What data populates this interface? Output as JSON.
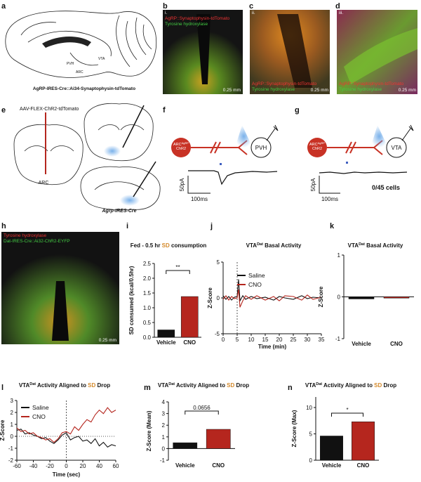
{
  "panels": {
    "letters": [
      "a",
      "b",
      "c",
      "d",
      "e",
      "f",
      "g",
      "h",
      "i",
      "j",
      "k",
      "l",
      "m",
      "n"
    ],
    "a": {
      "caption": "AgRP-IRES-Cre::Ai34-Synaptophysin-tdTomato",
      "labels": [
        "PVH",
        "VTA",
        "ARC"
      ]
    },
    "b": {
      "roman": "i.",
      "red_label": "AgRP::Synaptophysin-tdTomato",
      "green_label": "Tyrosine hydroxylase",
      "scale": "0.25 mm"
    },
    "c": {
      "roman": "ii.",
      "red_label": "AgRP::Synaptophysin-tdTomato",
      "green_label": "Tyrosine hydroxylase",
      "scale": "0.25 mm"
    },
    "d": {
      "roman": "iii.",
      "red_label": "AgRP::Synaptophysin-tdTomato",
      "green_label": "Tyrosine hydroxylase",
      "scale": "0.25 mm"
    },
    "e": {
      "virus": "AAV-FLEX-ChR2-tdTomato",
      "arc": "ARC",
      "mouse": "Agrp-IRES-Cre"
    },
    "f": {
      "cell": "ARC",
      "cell_sup": "AgRP",
      "cell_sub": "ChR2",
      "target": "PVH",
      "ybar": "50pA",
      "xbar": "100ms"
    },
    "g": {
      "cell": "ARC",
      "cell_sup": "AgRP",
      "cell_sub": "ChR2",
      "target": "VTA",
      "ybar": "50pA",
      "xbar": "100ms",
      "count": "0/45 cells"
    },
    "h": {
      "red_label": "Tyrosine hydroxylase",
      "green_label": "Dat-IRES-Cre::Ai32-ChR2-EYFP",
      "scale": "0.25 mm"
    }
  },
  "chart_data": [
    {
      "type": "bar",
      "title": [
        {
          "text": "Fed - 0.5 hr "
        },
        {
          "text": "SD",
          "color": "#d4892a"
        },
        {
          "text": " consumption"
        }
      ],
      "ylabel": "SD consumed (kcal/0.5hr)",
      "categories": [
        "Vehicle",
        "CNO"
      ],
      "values": [
        0.25,
        1.38
      ],
      "colors": [
        "#111111",
        "#b5261e"
      ],
      "ylim": [
        0,
        2.5
      ],
      "yticks": [
        {
          "value": 0,
          "label": "0.0"
        },
        {
          "value": 0.5,
          "label": "0.5"
        },
        {
          "value": 1,
          "label": "1.0"
        },
        {
          "value": 1.5,
          "label": "1.5"
        },
        {
          "value": 2,
          "label": "2.0"
        },
        {
          "value": 2.5,
          "label": "2.5"
        }
      ],
      "annotation": "**"
    },
    {
      "type": "line",
      "title": [
        {
          "text": "VTA"
        },
        {
          "text": "Dat",
          "sup": true
        },
        {
          "text": " Basal Activity"
        }
      ],
      "ylabel": "Z-Score",
      "xlabel": "Time (min)",
      "x": [
        0,
        1,
        2,
        3,
        4,
        5,
        5.5,
        6,
        7,
        8,
        10,
        12,
        15,
        18,
        20,
        22,
        25,
        28,
        30,
        32,
        35
      ],
      "series": [
        {
          "name": "Saline",
          "color": "#111111",
          "values": [
            0.3,
            -0.2,
            0.2,
            -0.3,
            0.1,
            0.2,
            2.6,
            -0.4,
            0.3,
            -0.2,
            0.2,
            -0.1,
            0.1,
            -0.3,
            0.2,
            0,
            -0.2,
            0.3,
            -0.1,
            0.1,
            0
          ]
        },
        {
          "name": "CNO",
          "color": "#b5261e",
          "values": [
            -0.2,
            0.3,
            -0.3,
            0.2,
            -0.1,
            0,
            1.2,
            -1.3,
            -0.4,
            0.3,
            -0.2,
            0.3,
            -0.3,
            0.2,
            -0.4,
            0.3,
            0.2,
            -0.3,
            0.4,
            -0.2,
            0.1
          ]
        }
      ],
      "xlim": [
        0,
        35
      ],
      "xticks": [
        0,
        5,
        10,
        15,
        20,
        25,
        30,
        35
      ],
      "ylim": [
        -5,
        5
      ],
      "yticks": [
        -5,
        0,
        5
      ],
      "vlines": [
        5
      ]
    },
    {
      "type": "bar",
      "title": [
        {
          "text": "VTA"
        },
        {
          "text": "Dat",
          "sup": true
        },
        {
          "text": " Basal Activity"
        }
      ],
      "ylabel": "Z-Score",
      "categories": [
        "Vehicle",
        "CNO"
      ],
      "values": [
        -0.05,
        -0.03
      ],
      "colors": [
        "#111111",
        "#b5261e"
      ],
      "ylim": [
        -1,
        1
      ],
      "yticks": [
        -1,
        0,
        1
      ]
    },
    {
      "type": "line",
      "title": [
        {
          "text": "VTA"
        },
        {
          "text": "Dat",
          "sup": true
        },
        {
          "text": " Activity Aligned to "
        },
        {
          "text": "SD",
          "color": "#d4892a"
        },
        {
          "text": " Drop"
        }
      ],
      "ylabel": "Z-Score",
      "xlabel": "Time (sec)",
      "x": [
        -60,
        -55,
        -50,
        -45,
        -40,
        -35,
        -30,
        -25,
        -20,
        -15,
        -10,
        -5,
        0,
        5,
        10,
        15,
        20,
        25,
        30,
        35,
        40,
        45,
        50,
        55,
        60
      ],
      "series": [
        {
          "name": "Saline",
          "color": "#111111",
          "values": [
            0.5,
            0.6,
            0.2,
            0.3,
            0.1,
            0,
            -0.2,
            -0.1,
            -0.4,
            -0.6,
            -0.3,
            0.1,
            0.3,
            -0.3,
            -0.1,
            0,
            -0.4,
            -0.3,
            -0.6,
            -0.2,
            -0.8,
            -0.5,
            -0.9,
            -0.7,
            -0.8
          ]
        },
        {
          "name": "CNO",
          "color": "#b5261e",
          "values": [
            0.7,
            0.4,
            0.5,
            0.2,
            0.3,
            0,
            -0.1,
            -0.3,
            -0.2,
            -0.5,
            -0.2,
            0.3,
            0.4,
            0.2,
            0.8,
            0.5,
            1,
            1.4,
            1.2,
            1.8,
            2.2,
            1.9,
            2.4,
            2,
            2.2
          ]
        }
      ],
      "xlim": [
        -60,
        60
      ],
      "xticks": [
        -60,
        -40,
        -20,
        0,
        20,
        40,
        60
      ],
      "ylim": [
        -2,
        3
      ],
      "yticks": [
        -2,
        -1,
        0,
        1,
        2,
        3
      ],
      "vlines": [
        0
      ],
      "hlines": [
        0
      ]
    },
    {
      "type": "bar",
      "title": [
        {
          "text": "VTA"
        },
        {
          "text": "Dat",
          "sup": true
        },
        {
          "text": " Activity Aligned to "
        },
        {
          "text": "SD",
          "color": "#d4892a"
        },
        {
          "text": " Drop"
        }
      ],
      "ylabel": "Z-Score (Mean)",
      "categories": [
        "Vehicle",
        "CNO"
      ],
      "values": [
        0.5,
        1.65
      ],
      "colors": [
        "#111111",
        "#b5261e"
      ],
      "ylim": [
        -1,
        4
      ],
      "yticks": [
        -1,
        0,
        1,
        2,
        3,
        4
      ],
      "annotation": "0.0656"
    },
    {
      "type": "bar",
      "title": [
        {
          "text": "VTA"
        },
        {
          "text": "Dat",
          "sup": true
        },
        {
          "text": " Activity Aligned to "
        },
        {
          "text": "SD",
          "color": "#d4892a"
        },
        {
          "text": " Drop"
        }
      ],
      "ylabel": "Z-Score (Max)",
      "categories": [
        "Vehicle",
        "CNO"
      ],
      "values": [
        4.6,
        7.3
      ],
      "colors": [
        "#111111",
        "#b5261e"
      ],
      "ylim": [
        0,
        12
      ],
      "yticks": [
        0,
        5,
        10
      ],
      "annotation": "*"
    }
  ]
}
